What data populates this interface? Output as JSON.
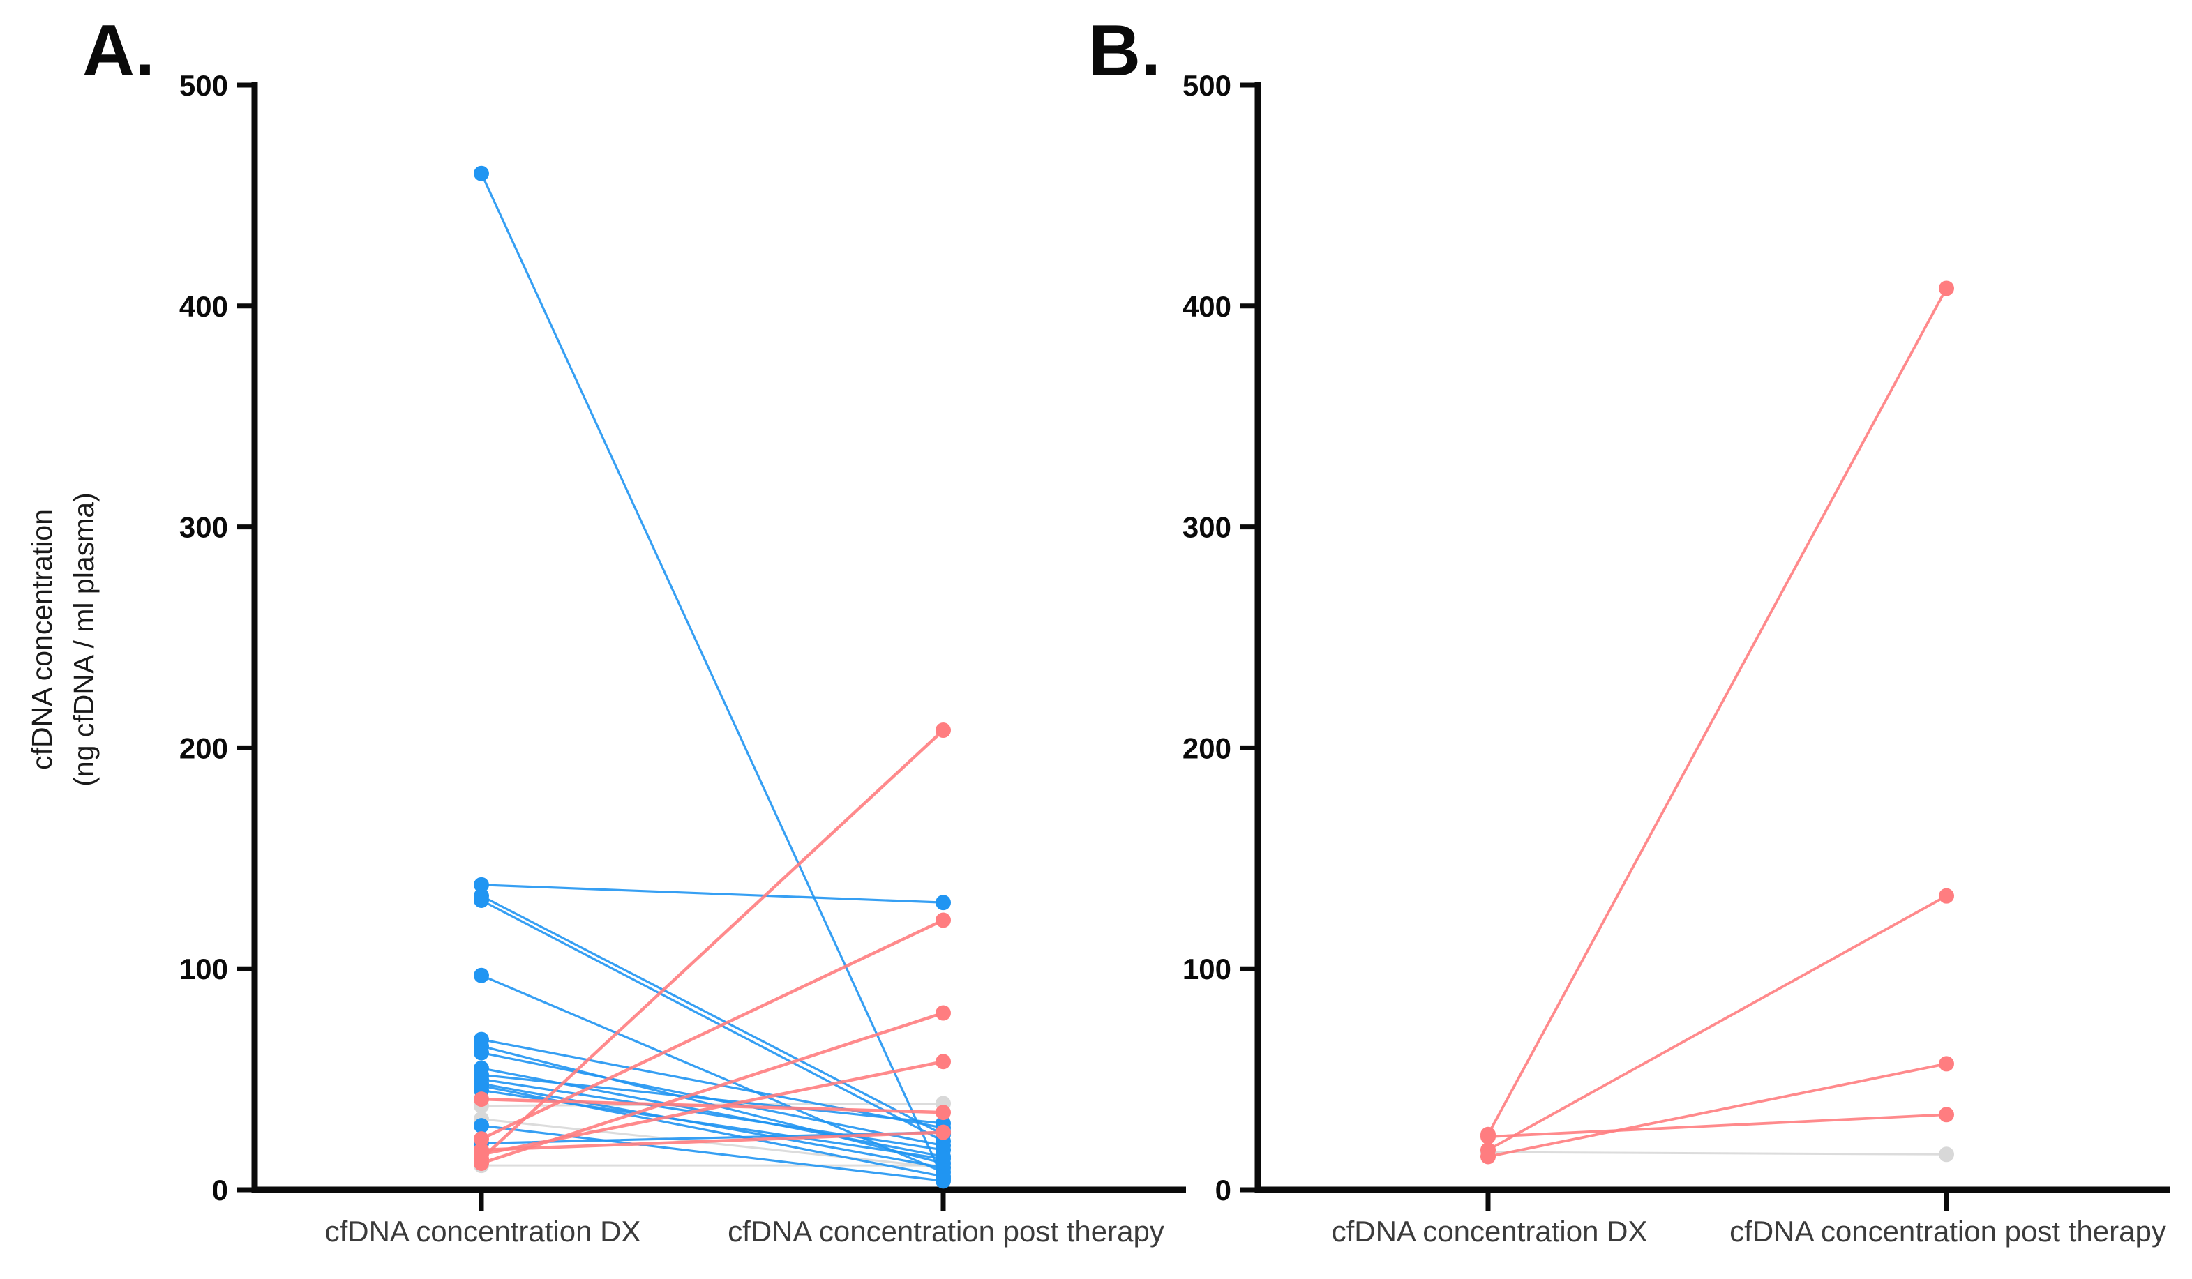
{
  "figure": {
    "panels": [
      {
        "label": "A."
      },
      {
        "label": "B."
      }
    ],
    "y_axis_title_line1": "cfDNA concentration",
    "y_axis_title_line2": "(ng cfDNA / ml plasma)",
    "colors": {
      "decrease_blue": "#2095F2",
      "increase_red": "#FF7D80",
      "stable_grey": "#D8D8D8",
      "axis_black": "#0a0a0a"
    }
  },
  "chart_data": [
    {
      "type": "line",
      "title": "A.",
      "categories": [
        "cfDNA concentration DX",
        "cfDNA concentration post therapy"
      ],
      "ylabel": "cfDNA concentration (ng cfDNA / ml plasma)",
      "ylim": [
        0,
        500
      ],
      "yticks": [
        "0",
        "100",
        "200",
        "300",
        "400",
        "500"
      ],
      "grid": false,
      "legend": "none",
      "series": [
        {
          "name": "stable-grey",
          "color": "#D8D8D8",
          "line_width": 3,
          "pairs": [
            [
              38,
              39
            ],
            [
              32,
              10
            ],
            [
              11,
              11
            ]
          ]
        },
        {
          "name": "decrease-blue",
          "color": "#2095F2",
          "line_width": 3.2,
          "pairs": [
            [
              460,
              5
            ],
            [
              138,
              130
            ],
            [
              133,
              25
            ],
            [
              131,
              22
            ],
            [
              97,
              8
            ],
            [
              68,
              28
            ],
            [
              65,
              12
            ],
            [
              62,
              20
            ],
            [
              55,
              15
            ],
            [
              52,
              30
            ],
            [
              50,
              18
            ],
            [
              48,
              10
            ],
            [
              47,
              6
            ],
            [
              45,
              14
            ],
            [
              29,
              4
            ],
            [
              21,
              26
            ]
          ]
        },
        {
          "name": "increase-red",
          "color": "#FF7D80",
          "line_width": 4.5,
          "pairs": [
            [
              41,
              35
            ],
            [
              23,
              122
            ],
            [
              18,
              26
            ],
            [
              16,
              58
            ],
            [
              14,
              208
            ],
            [
              12,
              80
            ]
          ]
        }
      ]
    },
    {
      "type": "line",
      "title": "B.",
      "categories": [
        "cfDNA concentration DX",
        "cfDNA concentration post therapy"
      ],
      "ylabel": "cfDNA concentration (ng cfDNA / ml plasma)",
      "ylim": [
        0,
        500
      ],
      "yticks": [
        "0",
        "100",
        "200",
        "300",
        "400",
        "500"
      ],
      "grid": false,
      "legend": "none",
      "series": [
        {
          "name": "stable-grey",
          "color": "#D8D8D8",
          "line_width": 3,
          "pairs": [
            [
              17,
              16
            ]
          ]
        },
        {
          "name": "increase-red",
          "color": "#FF7D80",
          "line_width": 3.8,
          "pairs": [
            [
              25,
              408
            ],
            [
              18,
              133
            ],
            [
              15,
              57
            ],
            [
              24,
              34
            ]
          ]
        }
      ]
    }
  ]
}
